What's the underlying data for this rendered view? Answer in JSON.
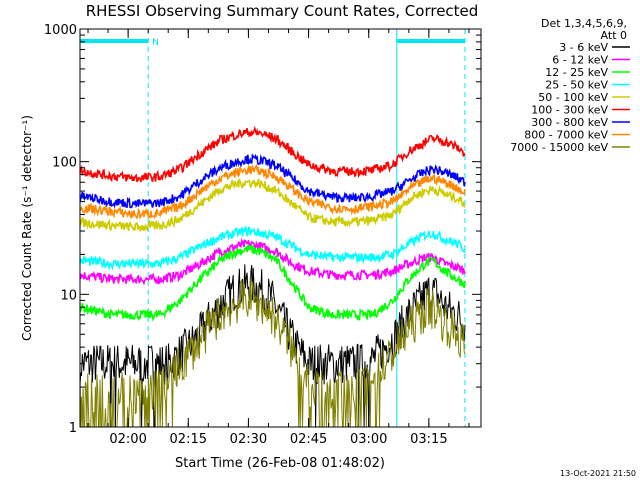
{
  "chart_data": {
    "type": "line",
    "title": "RHESSI Observing Summary Count Rates, Corrected",
    "xlabel": "Start Time (26-Feb-08 01:48:02)",
    "ylabel": "Corrected Count Rate (s⁻¹ detector⁻¹)",
    "yscale": "log",
    "ylim": [
      1,
      1000
    ],
    "y_ticks": [
      {
        "value": 1,
        "label": "1"
      },
      {
        "value": 10,
        "label": "10"
      },
      {
        "value": 100,
        "label": "100"
      },
      {
        "value": 1000,
        "label": "1000"
      }
    ],
    "x_range_minutes_after_start": [
      0,
      100
    ],
    "x_ticks": [
      {
        "t": 12,
        "label": "02:00"
      },
      {
        "t": 27,
        "label": "02:15"
      },
      {
        "t": 42,
        "label": "02:30"
      },
      {
        "t": 57,
        "label": "02:45"
      },
      {
        "t": 72,
        "label": "03:00"
      },
      {
        "t": 87,
        "label": "03:15"
      }
    ],
    "legend_header": [
      "Det 1,3,4,5,6,9,",
      "Att 0"
    ],
    "legend_position": "right",
    "footer_date": "13-Oct-2021 21:50",
    "night_marker_label": "N",
    "intervals": {
      "color": "#00e5ee",
      "bars": [
        {
          "start": 0,
          "end": 17,
          "label": "N"
        },
        {
          "start": 79,
          "end": 96
        }
      ],
      "dashed_lines": [
        17,
        96
      ],
      "solid_lines": [
        0,
        79
      ]
    },
    "series": [
      {
        "name": "3 - 6 keV",
        "color": "#000000",
        "values": [
          [
            0,
            3
          ],
          [
            12,
            3
          ],
          [
            17,
            3
          ],
          [
            22,
            3
          ],
          [
            27,
            4
          ],
          [
            30,
            5
          ],
          [
            33,
            7
          ],
          [
            36,
            9
          ],
          [
            39,
            11
          ],
          [
            42,
            12
          ],
          [
            45,
            11
          ],
          [
            48,
            9
          ],
          [
            51,
            6
          ],
          [
            54,
            4
          ],
          [
            57,
            3
          ],
          [
            62,
            3
          ],
          [
            67,
            3
          ],
          [
            72,
            3
          ],
          [
            76,
            4
          ],
          [
            79,
            5
          ],
          [
            82,
            7
          ],
          [
            85,
            9
          ],
          [
            87,
            10.5
          ],
          [
            89,
            10
          ],
          [
            91,
            8
          ],
          [
            94,
            7
          ],
          [
            96,
            6
          ]
        ]
      },
      {
        "name": "6 - 12 keV",
        "color": "#ff00ff",
        "values": [
          [
            0,
            14
          ],
          [
            8,
            13
          ],
          [
            14,
            13
          ],
          [
            20,
            13
          ],
          [
            25,
            14
          ],
          [
            30,
            17
          ],
          [
            35,
            21
          ],
          [
            39,
            23
          ],
          [
            42,
            24
          ],
          [
            45,
            23
          ],
          [
            49,
            21
          ],
          [
            53,
            17
          ],
          [
            57,
            15
          ],
          [
            63,
            14
          ],
          [
            68,
            14
          ],
          [
            73,
            14
          ],
          [
            78,
            15
          ],
          [
            82,
            17
          ],
          [
            86,
            19
          ],
          [
            88,
            19
          ],
          [
            91,
            17
          ],
          [
            94,
            16
          ],
          [
            96,
            15
          ]
        ]
      },
      {
        "name": "12 - 25 keV",
        "color": "#00ff00",
        "values": [
          [
            0,
            8
          ],
          [
            8,
            7
          ],
          [
            14,
            7
          ],
          [
            20,
            7
          ],
          [
            25,
            9
          ],
          [
            30,
            13
          ],
          [
            35,
            18
          ],
          [
            39,
            21
          ],
          [
            42,
            22
          ],
          [
            45,
            21
          ],
          [
            49,
            18
          ],
          [
            53,
            12
          ],
          [
            57,
            8
          ],
          [
            63,
            7
          ],
          [
            68,
            7
          ],
          [
            73,
            7
          ],
          [
            78,
            9
          ],
          [
            82,
            13
          ],
          [
            86,
            17
          ],
          [
            88,
            18
          ],
          [
            91,
            15
          ],
          [
            94,
            13
          ],
          [
            96,
            12
          ]
        ]
      },
      {
        "name": "25 - 50 keV",
        "color": "#00ffff",
        "values": [
          [
            0,
            18
          ],
          [
            8,
            17
          ],
          [
            14,
            17
          ],
          [
            20,
            17
          ],
          [
            25,
            19
          ],
          [
            30,
            23
          ],
          [
            35,
            27
          ],
          [
            39,
            29
          ],
          [
            42,
            30
          ],
          [
            45,
            29
          ],
          [
            49,
            27
          ],
          [
            53,
            23
          ],
          [
            57,
            20
          ],
          [
            63,
            19
          ],
          [
            68,
            19
          ],
          [
            73,
            19
          ],
          [
            78,
            20
          ],
          [
            82,
            24
          ],
          [
            86,
            28
          ],
          [
            88,
            29
          ],
          [
            91,
            26
          ],
          [
            94,
            24
          ],
          [
            96,
            22
          ]
        ]
      },
      {
        "name": "50 - 100 keV",
        "color": "#cccc00",
        "values": [
          [
            0,
            35
          ],
          [
            8,
            33
          ],
          [
            14,
            32
          ],
          [
            20,
            33
          ],
          [
            25,
            37
          ],
          [
            30,
            48
          ],
          [
            35,
            62
          ],
          [
            39,
            68
          ],
          [
            42,
            70
          ],
          [
            45,
            68
          ],
          [
            49,
            60
          ],
          [
            53,
            48
          ],
          [
            57,
            38
          ],
          [
            63,
            35
          ],
          [
            68,
            35
          ],
          [
            73,
            36
          ],
          [
            78,
            40
          ],
          [
            82,
            52
          ],
          [
            86,
            60
          ],
          [
            88,
            62
          ],
          [
            91,
            57
          ],
          [
            94,
            53
          ],
          [
            96,
            48
          ]
        ]
      },
      {
        "name": "100 - 300 keV",
        "color": "#ff0000",
        "values": [
          [
            0,
            85
          ],
          [
            8,
            78
          ],
          [
            14,
            75
          ],
          [
            20,
            77
          ],
          [
            25,
            88
          ],
          [
            30,
            115
          ],
          [
            35,
            145
          ],
          [
            39,
            160
          ],
          [
            42,
            167
          ],
          [
            45,
            164
          ],
          [
            49,
            148
          ],
          [
            53,
            118
          ],
          [
            57,
            95
          ],
          [
            63,
            85
          ],
          [
            68,
            84
          ],
          [
            73,
            86
          ],
          [
            78,
            95
          ],
          [
            82,
            120
          ],
          [
            86,
            140
          ],
          [
            88,
            150
          ],
          [
            91,
            142
          ],
          [
            94,
            128
          ],
          [
            96,
            115
          ]
        ]
      },
      {
        "name": "300 - 800 keV",
        "color": "#0000ff",
        "values": [
          [
            0,
            55
          ],
          [
            8,
            50
          ],
          [
            14,
            48
          ],
          [
            20,
            49
          ],
          [
            25,
            55
          ],
          [
            30,
            72
          ],
          [
            35,
            90
          ],
          [
            39,
            100
          ],
          [
            42,
            105
          ],
          [
            45,
            102
          ],
          [
            49,
            93
          ],
          [
            53,
            75
          ],
          [
            57,
            60
          ],
          [
            63,
            54
          ],
          [
            68,
            53
          ],
          [
            73,
            55
          ],
          [
            78,
            60
          ],
          [
            82,
            72
          ],
          [
            86,
            84
          ],
          [
            88,
            88
          ],
          [
            91,
            83
          ],
          [
            94,
            76
          ],
          [
            96,
            70
          ]
        ]
      },
      {
        "name": "800 - 7000 keV",
        "color": "#ff8800",
        "values": [
          [
            0,
            45
          ],
          [
            8,
            42
          ],
          [
            14,
            40
          ],
          [
            20,
            41
          ],
          [
            25,
            46
          ],
          [
            30,
            60
          ],
          [
            35,
            75
          ],
          [
            39,
            83
          ],
          [
            42,
            87
          ],
          [
            45,
            85
          ],
          [
            49,
            77
          ],
          [
            53,
            62
          ],
          [
            57,
            50
          ],
          [
            63,
            45
          ],
          [
            68,
            44
          ],
          [
            73,
            46
          ],
          [
            78,
            50
          ],
          [
            82,
            62
          ],
          [
            86,
            72
          ],
          [
            88,
            75
          ],
          [
            91,
            70
          ],
          [
            94,
            64
          ],
          [
            96,
            58
          ]
        ]
      },
      {
        "name": "7000 - 15000 keV",
        "color": "#808000",
        "values": [
          [
            0,
            1.8
          ],
          [
            12,
            1.8
          ],
          [
            17,
            1.8
          ],
          [
            22,
            2.2
          ],
          [
            27,
            3.5
          ],
          [
            30,
            4.5
          ],
          [
            33,
            6
          ],
          [
            36,
            7.5
          ],
          [
            39,
            8.5
          ],
          [
            42,
            9.5
          ],
          [
            45,
            8.5
          ],
          [
            48,
            7
          ],
          [
            51,
            5
          ],
          [
            54,
            3.2
          ],
          [
            57,
            2
          ],
          [
            62,
            1.8
          ],
          [
            67,
            1.8
          ],
          [
            72,
            2
          ],
          [
            76,
            3
          ],
          [
            79,
            4
          ],
          [
            82,
            5.5
          ],
          [
            85,
            7
          ],
          [
            87,
            8
          ],
          [
            89,
            7.5
          ],
          [
            91,
            6
          ],
          [
            94,
            5
          ],
          [
            96,
            4
          ]
        ]
      }
    ]
  }
}
